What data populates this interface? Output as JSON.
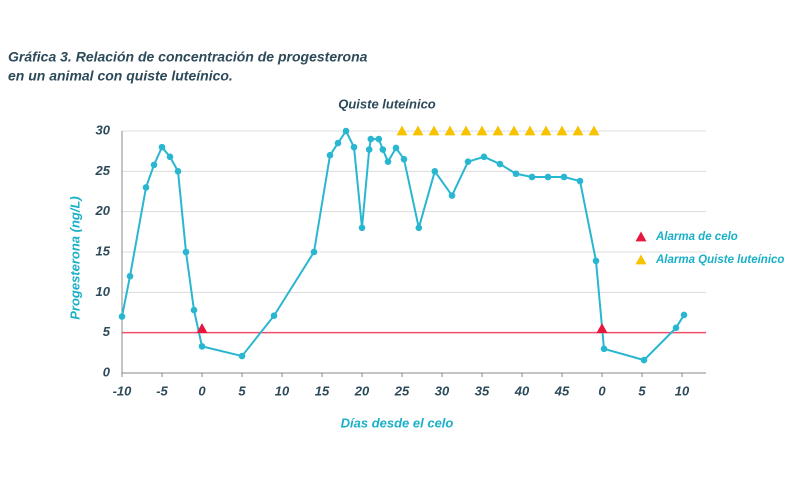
{
  "chart_data": {
    "type": "line",
    "title": [
      "Gráfica 3. Relación de concentración de progesterona",
      "en un animal con quiste luteínico."
    ],
    "subtitle": "Quiste luteínico",
    "xlabel": "Días desde el celo",
    "ylabel": "Progesterona (ng/L)",
    "xlim": [
      -10,
      63
    ],
    "ylim": [
      0,
      30
    ],
    "xticks": [
      -10,
      -5,
      0,
      5,
      10,
      15,
      20,
      25,
      30,
      35,
      40,
      45,
      {
        "value": 50,
        "label": "0"
      },
      {
        "value": 55,
        "label": "5"
      },
      {
        "value": 60,
        "label": "10"
      }
    ],
    "yticks": [
      0,
      5,
      10,
      15,
      20,
      25,
      30
    ],
    "grid": true,
    "hline": {
      "value": 5,
      "color": "#f0506e"
    },
    "legend": "right",
    "series": [
      {
        "color": "#29b6d1",
        "marker": "circle",
        "x": [
          -10,
          -9,
          -7,
          -6,
          -5,
          -4,
          -3,
          -2,
          -1,
          0,
          5,
          9,
          14,
          16,
          17,
          18,
          19,
          20,
          20.9,
          21.1,
          22.1,
          22.6,
          23.25,
          24.25,
          25.25,
          27.1,
          29.1,
          31.25,
          33.25,
          35.25,
          37.25,
          39.25,
          41.25,
          43.25,
          45.25,
          47.25,
          49.25,
          50.25,
          55.25,
          59.25,
          60.25
        ],
        "values": [
          7,
          12,
          23,
          25.8,
          28,
          26.8,
          25,
          15,
          7.8,
          3.3,
          2.1,
          7.1,
          15,
          27,
          28.5,
          30,
          28,
          18,
          27.7,
          29,
          29,
          27.7,
          26.2,
          27.9,
          26.5,
          18,
          25,
          22,
          26.2,
          26.8,
          25.9,
          24.7,
          24.3,
          24.3,
          24.3,
          23.8,
          13.9,
          3,
          1.6,
          5.6,
          7.2
        ]
      },
      {
        "name": "Alarma de celo",
        "color": "#e8173e",
        "marker": "triangle",
        "x": [
          0,
          50
        ],
        "values": [
          5.5,
          5.5
        ]
      },
      {
        "name": "Alarma Quiste luteínico",
        "color": "#f7c300",
        "marker": "triangle",
        "x": [
          25,
          27,
          29,
          31,
          33,
          35,
          37,
          39,
          41,
          43,
          45,
          47,
          49
        ],
        "values": [
          30,
          30,
          30,
          30,
          30,
          30,
          30,
          30,
          30,
          30,
          30,
          30,
          30
        ]
      }
    ]
  }
}
